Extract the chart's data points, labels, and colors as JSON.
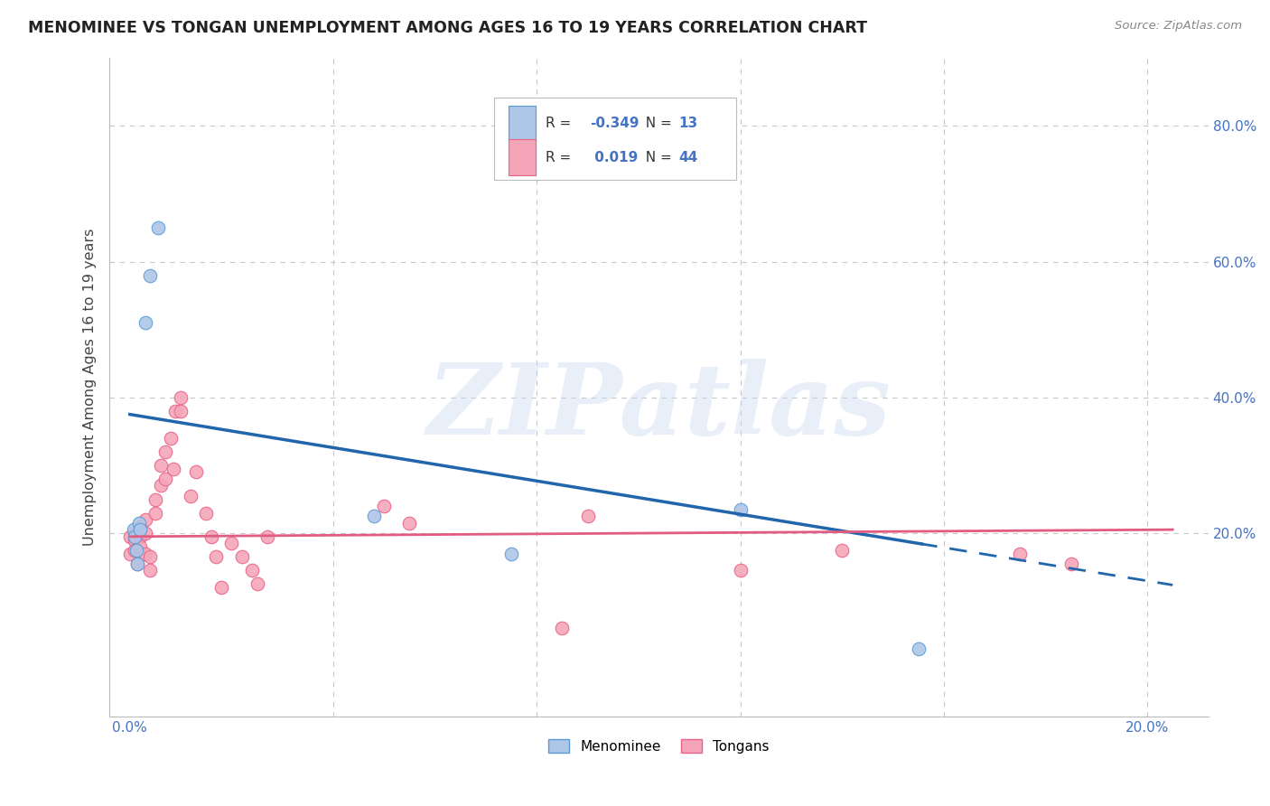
{
  "title": "MENOMINEE VS TONGAN UNEMPLOYMENT AMONG AGES 16 TO 19 YEARS CORRELATION CHART",
  "source": "Source: ZipAtlas.com",
  "ylabel": "Unemployment Among Ages 16 to 19 years",
  "x_ticks": [
    0.0,
    0.04,
    0.08,
    0.12,
    0.16,
    0.2
  ],
  "x_tick_labels": [
    "0.0%",
    "",
    "",
    "",
    "",
    "20.0%"
  ],
  "y_ticks": [
    0.0,
    0.2,
    0.4,
    0.6,
    0.8
  ],
  "y_tick_labels": [
    "",
    "20.0%",
    "40.0%",
    "60.0%",
    "80.0%"
  ],
  "xlim": [
    -0.004,
    0.212
  ],
  "ylim": [
    -0.07,
    0.9
  ],
  "menominee_x": [
    0.0008,
    0.001,
    0.0012,
    0.0015,
    0.0018,
    0.002,
    0.003,
    0.004,
    0.0055,
    0.048,
    0.075,
    0.12,
    0.155
  ],
  "menominee_y": [
    0.205,
    0.195,
    0.175,
    0.155,
    0.215,
    0.205,
    0.51,
    0.58,
    0.65,
    0.225,
    0.17,
    0.235,
    0.03
  ],
  "tongans_x": [
    0.0,
    0.0,
    0.001,
    0.001,
    0.001,
    0.0015,
    0.002,
    0.002,
    0.002,
    0.003,
    0.003,
    0.003,
    0.004,
    0.004,
    0.005,
    0.005,
    0.006,
    0.006,
    0.007,
    0.007,
    0.008,
    0.0085,
    0.009,
    0.01,
    0.01,
    0.012,
    0.013,
    0.015,
    0.016,
    0.017,
    0.018,
    0.02,
    0.022,
    0.024,
    0.025,
    0.027,
    0.05,
    0.055,
    0.085,
    0.09,
    0.12,
    0.14,
    0.175,
    0.185
  ],
  "tongans_y": [
    0.195,
    0.17,
    0.2,
    0.19,
    0.175,
    0.155,
    0.21,
    0.195,
    0.18,
    0.22,
    0.2,
    0.17,
    0.165,
    0.145,
    0.25,
    0.23,
    0.3,
    0.27,
    0.32,
    0.28,
    0.34,
    0.295,
    0.38,
    0.4,
    0.38,
    0.255,
    0.29,
    0.23,
    0.195,
    0.165,
    0.12,
    0.185,
    0.165,
    0.145,
    0.125,
    0.195,
    0.24,
    0.215,
    0.06,
    0.225,
    0.145,
    0.175,
    0.17,
    0.155
  ],
  "menominee_color": "#aec6e8",
  "tongans_color": "#f4a6b8",
  "menominee_edge_color": "#5b9bd5",
  "tongans_edge_color": "#e8638a",
  "trend_menominee_color": "#2166ac",
  "trend_tongans_color": "#e05c80",
  "trend_men_x0": 0.0,
  "trend_men_y0": 0.375,
  "trend_men_x1": 0.155,
  "trend_men_y1": 0.185,
  "trend_ton_x0": 0.0,
  "trend_ton_y0": 0.195,
  "trend_ton_x1": 0.2,
  "trend_ton_y1": 0.205,
  "legend_R_menominee": "-0.349",
  "legend_N_menominee": "13",
  "legend_R_tongans": "0.019",
  "legend_N_tongans": "44",
  "watermark_text": "ZIPatlas",
  "marker_size": 110,
  "background_color": "#ffffff",
  "grid_color": "#c8c8c8"
}
